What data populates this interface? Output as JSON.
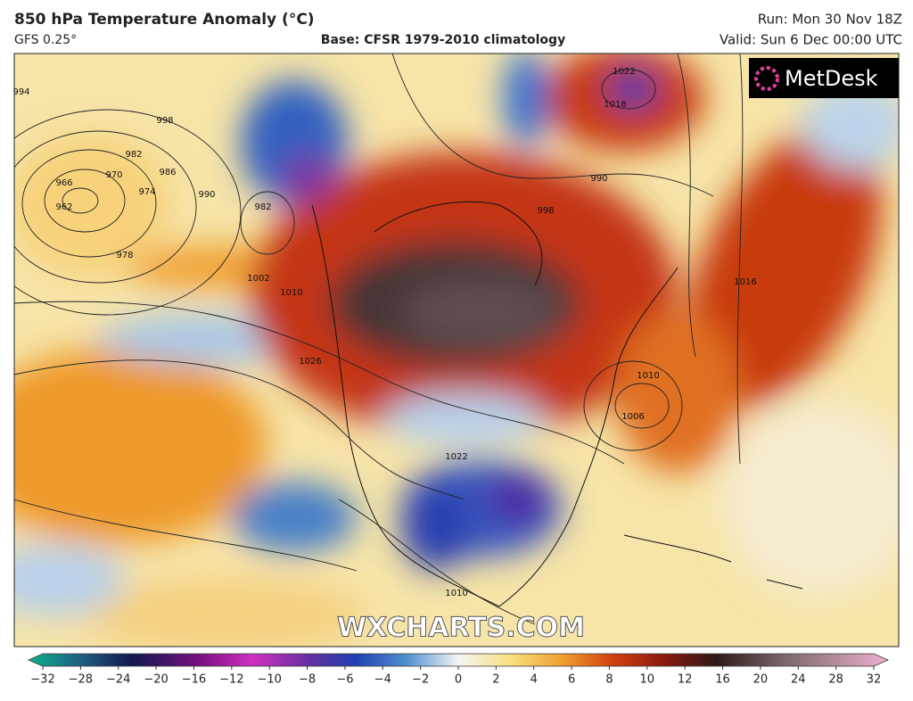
{
  "header": {
    "title": "850 hPa Temperature Anomaly (°C)",
    "model": "GFS 0.25°",
    "base": "Base: CFSR 1979-2010 climatology",
    "run": "Run: Mon 30 Nov 18Z",
    "valid": "Valid: Sun 6 Dec 00:00 UTC"
  },
  "logo": "MetDesk",
  "watermark": "WXCHARTS.COM",
  "colorbar": {
    "ticks": [
      "−32",
      "−28",
      "−24",
      "−20",
      "−16",
      "−12",
      "−10",
      "−8",
      "−6",
      "−4",
      "−2",
      "0",
      "2",
      "4",
      "6",
      "8",
      "10",
      "12",
      "16",
      "20",
      "24",
      "28",
      "32"
    ]
  },
  "contour_labels": [
    "994",
    "998",
    "982",
    "986",
    "966",
    "970",
    "974",
    "962",
    "978",
    "990",
    "982",
    "1002",
    "1010",
    "1026",
    "1022",
    "1018",
    "990",
    "998",
    "1016",
    "1010",
    "1006",
    "1022",
    "1010"
  ]
}
